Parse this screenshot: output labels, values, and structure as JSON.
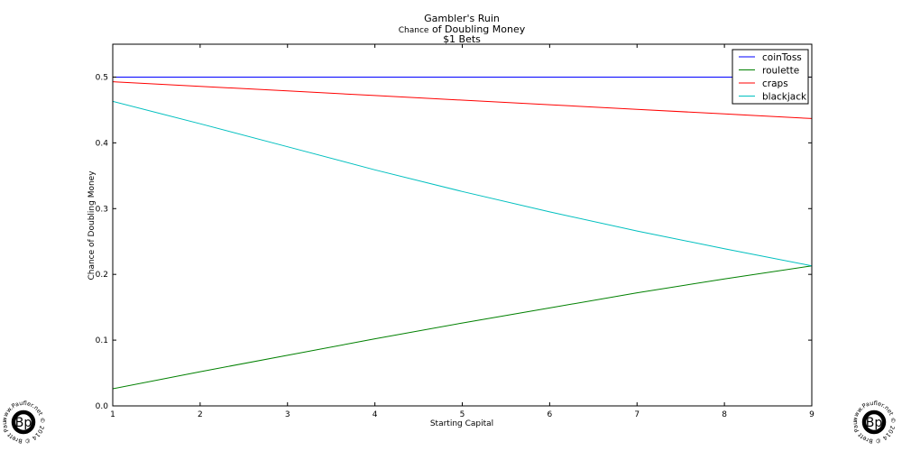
{
  "chart_data": {
    "type": "line",
    "title": "Gambler's Ruin",
    "subtitle_prefix": "Chance",
    "subtitle_rest": " of Doubling Money",
    "subtitle2": "$1 Bets",
    "xlabel": "Starting Capital",
    "ylabel": "Chance of Doubling Money",
    "xlim": [
      1,
      9
    ],
    "ylim": [
      0,
      0.55
    ],
    "x_ticks": [
      "1",
      "2",
      "3",
      "4",
      "5",
      "6",
      "7",
      "8",
      "9"
    ],
    "y_ticks": [
      "0.0",
      "0.1",
      "0.2",
      "0.3",
      "0.4",
      "0.5"
    ],
    "legend_position": "top-right",
    "grid": false,
    "x": [
      1,
      2,
      3,
      4,
      5,
      6,
      7,
      8,
      9
    ],
    "series": [
      {
        "name": "coinToss",
        "color": "#0000ff",
        "values": [
          0.5,
          0.5,
          0.5,
          0.5,
          0.5,
          0.5,
          0.5,
          0.5,
          0.5
        ]
      },
      {
        "name": "roulette",
        "color": "#008000",
        "values": [
          0.026,
          0.052,
          0.077,
          0.102,
          0.126,
          0.149,
          0.172,
          0.193,
          0.213
        ]
      },
      {
        "name": "craps",
        "color": "#ff0000",
        "values": [
          0.493,
          0.486,
          0.479,
          0.472,
          0.465,
          0.458,
          0.451,
          0.444,
          0.437
        ]
      },
      {
        "name": "blackjack",
        "color": "#00bfbf",
        "values": [
          0.463,
          0.429,
          0.394,
          0.359,
          0.326,
          0.295,
          0.266,
          0.239,
          0.213
        ]
      }
    ]
  },
  "watermark": {
    "logo_text": "Bp",
    "ring_text": "www.Paufler.net © 2014 © Brett Paufler ©"
  }
}
